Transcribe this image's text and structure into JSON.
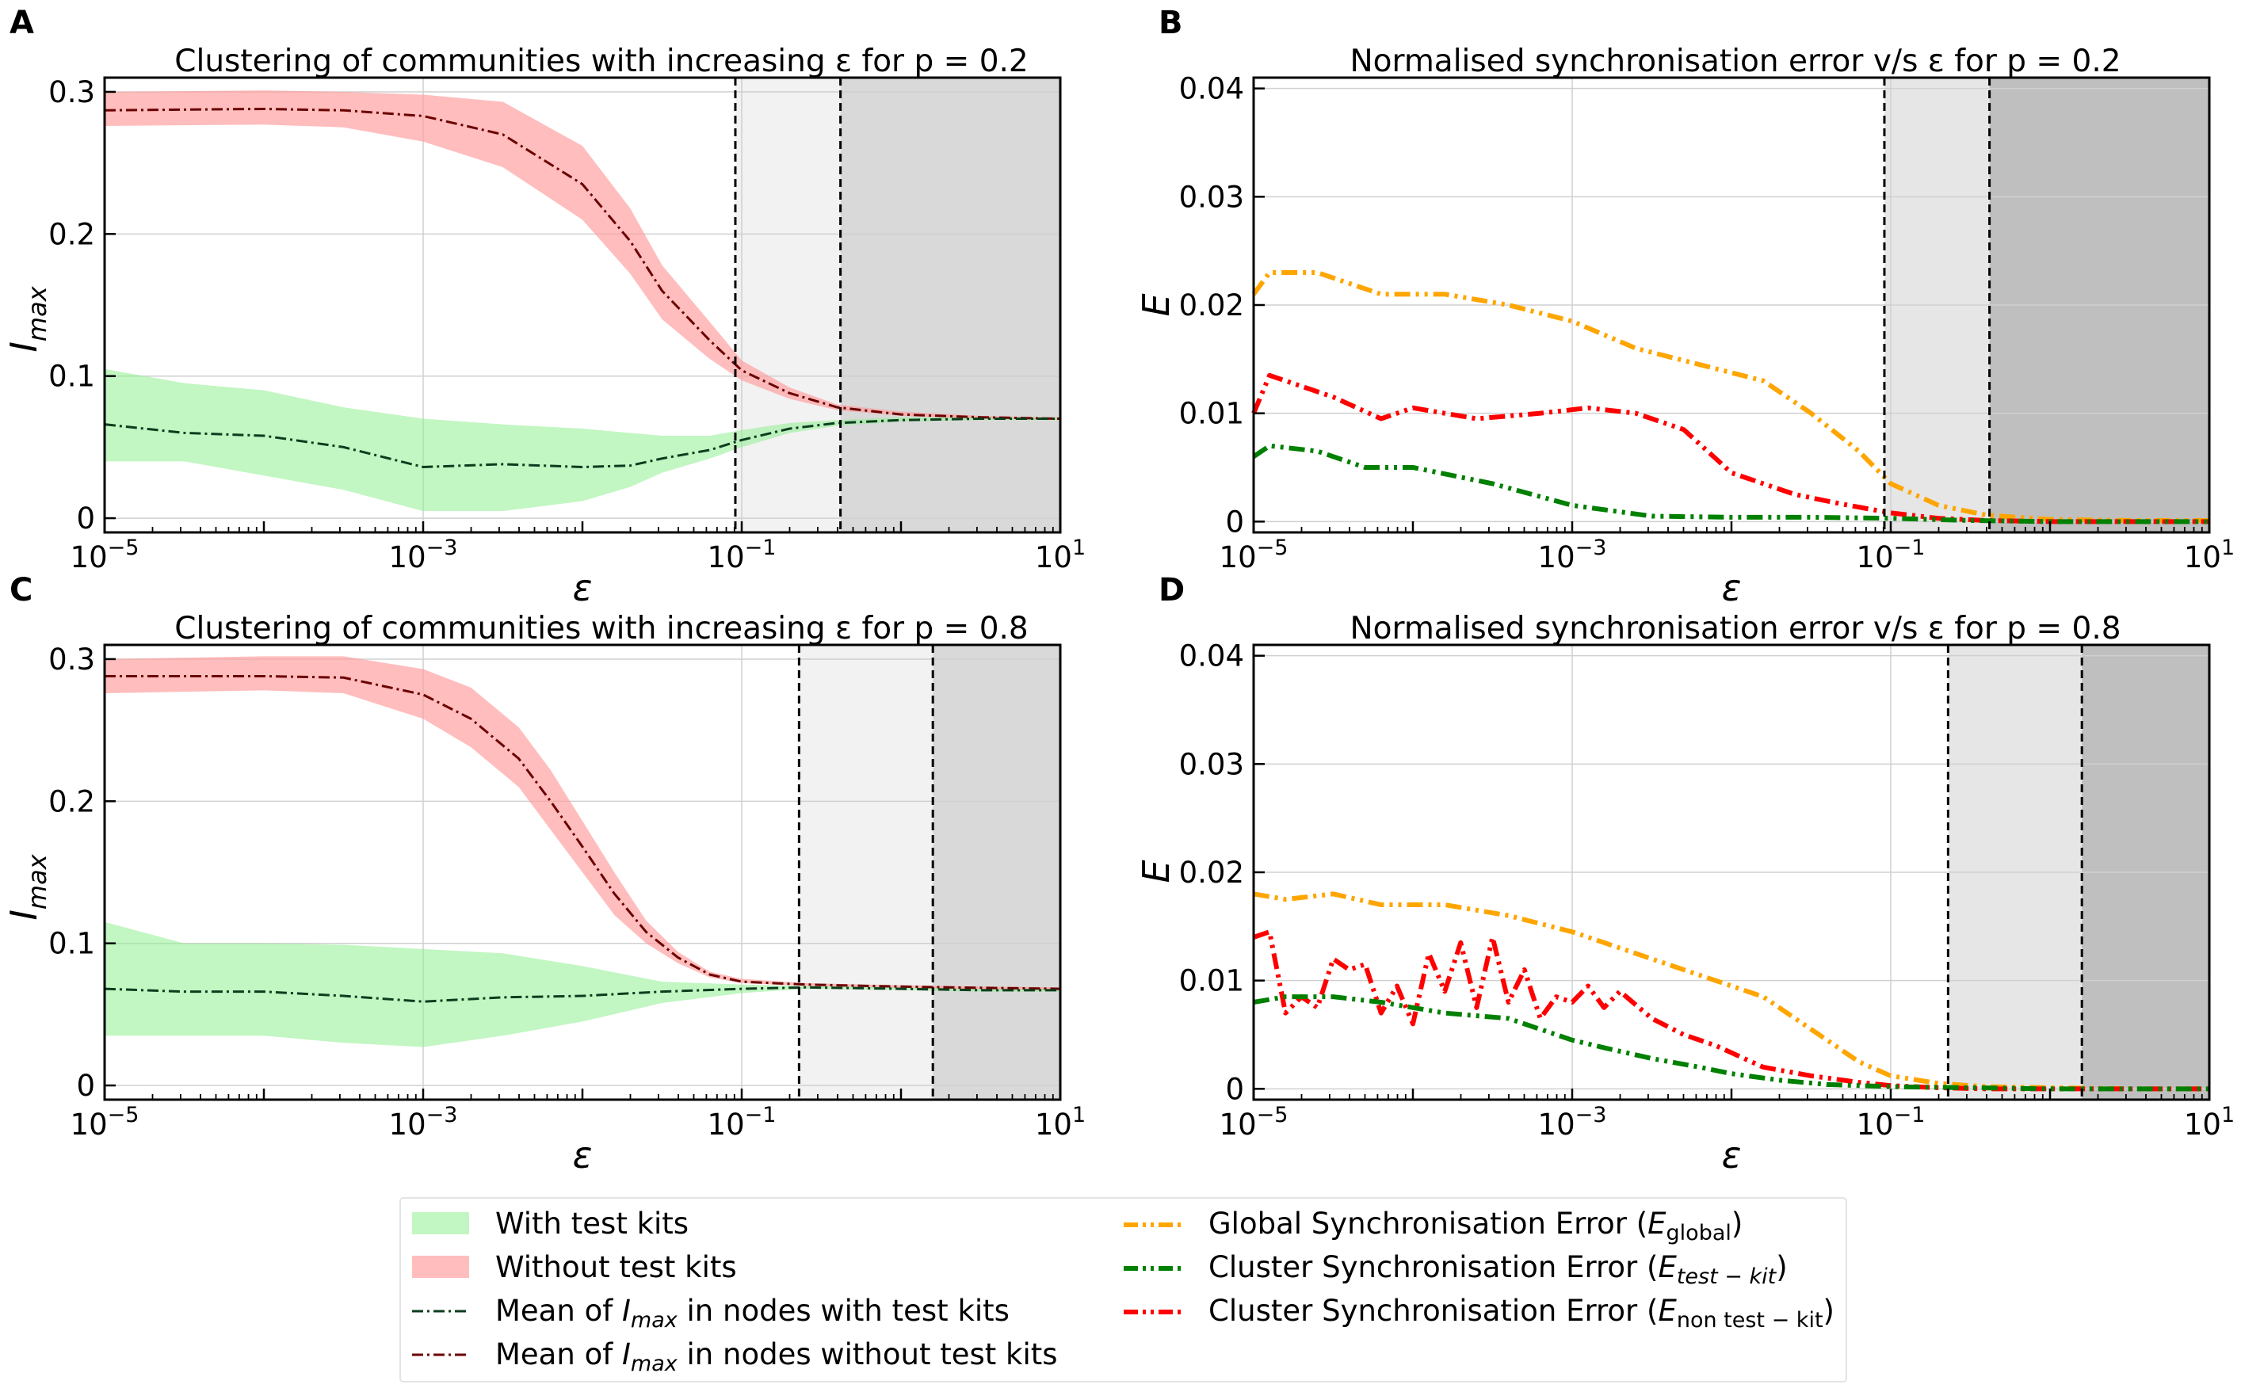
{
  "figure": {
    "panels": {
      "A": {
        "letter": "A",
        "title": "Clustering of communities with increasing ε for p = 0.2",
        "ylabel": "I",
        "ysub": "max",
        "xlabel": "ε"
      },
      "B": {
        "letter": "B",
        "title": "Normalised synchronisation error v/s ε for p = 0.2",
        "ylabel": "E",
        "xlabel": "ε"
      },
      "C": {
        "letter": "C",
        "title": "Clustering of communities with increasing ε for p = 0.8",
        "ylabel": "I",
        "ysub": "max",
        "xlabel": "ε"
      },
      "D": {
        "letter": "D",
        "title": "Normalised synchronisation error v/s ε for p = 0.8",
        "ylabel": "E",
        "xlabel": "ε"
      }
    },
    "xticks": [
      {
        "base": "10",
        "exp": "−5"
      },
      {
        "base": "10",
        "exp": "−3"
      },
      {
        "base": "10",
        "exp": "−1"
      },
      {
        "base": "10",
        "exp": "1"
      }
    ],
    "yticks_imax": [
      "0",
      "0.1",
      "0.2",
      "0.3"
    ],
    "yticks_err": [
      "0",
      "0.01",
      "0.02",
      "0.03",
      "0.04"
    ],
    "legend": {
      "with_kits": "With test kits",
      "without_kits": "Without test kits",
      "mean_with": {
        "pre": "Mean of ",
        "var": "I",
        "sub": "max",
        "post": " in nodes with test kits"
      },
      "mean_without": {
        "pre": "Mean of ",
        "var": "I",
        "sub": "max",
        "post": " in nodes without test kits"
      },
      "global": {
        "pre": "Global Synchronisation Error (",
        "var": "E",
        "sub": "global",
        "post": ")"
      },
      "cluster_kit": {
        "pre": "Cluster Synchronisation Error (",
        "var": "E",
        "sub": "test − kit",
        "post": ")"
      },
      "cluster_nonkit": {
        "pre": "Cluster Synchronisation Error (",
        "var": "E",
        "sub": "non test − kit",
        "post": ")"
      }
    }
  },
  "colors": {
    "green_band": "#90ee90",
    "red_band": "#ff9999",
    "mean_with": "#0b3d1e",
    "mean_without": "#6b0000",
    "global": "#ffa500",
    "cluster_kit": "#008000",
    "cluster_nonkit": "#ff0000",
    "shade_light_A": "#f2f2f2",
    "shade_dark_A": "#d9d9d9",
    "shade_light_B": "#e6e6e6",
    "shade_dark_B": "#bfbfbf"
  },
  "chart_data": [
    {
      "id": "A",
      "type": "line",
      "title": "Clustering of communities with increasing ε for p = 0.2",
      "xscale": "log",
      "xlim": [
        -5,
        1
      ],
      "ylim": [
        -0.01,
        0.31
      ],
      "xlabel": "ε",
      "ylabel": "I_max",
      "vlines": [
        -1.04,
        -0.38
      ],
      "shade": [
        [
          -1.04,
          -0.38
        ],
        [
          -0.38,
          1
        ]
      ],
      "series": [
        {
          "name": "Mean of I_max in nodes without test kits",
          "logx": [
            -5,
            -4,
            -3.5,
            -3,
            -2.5,
            -2,
            -1.7,
            -1.5,
            -1.2,
            -1,
            -0.7,
            -0.4,
            0,
            0.5,
            1
          ],
          "values": [
            0.287,
            0.288,
            0.287,
            0.283,
            0.27,
            0.235,
            0.195,
            0.16,
            0.125,
            0.104,
            0.088,
            0.078,
            0.073,
            0.071,
            0.07
          ],
          "band_lo": [
            0.276,
            0.277,
            0.275,
            0.265,
            0.247,
            0.21,
            0.172,
            0.14,
            0.112,
            0.097,
            0.084,
            0.076,
            0.072,
            0.07,
            0.069
          ],
          "band_hi": [
            0.3,
            0.301,
            0.3,
            0.298,
            0.293,
            0.262,
            0.218,
            0.178,
            0.138,
            0.111,
            0.092,
            0.08,
            0.075,
            0.072,
            0.071
          ]
        },
        {
          "name": "Mean of I_max in nodes with test kits",
          "logx": [
            -5,
            -4.5,
            -4,
            -3.5,
            -3,
            -2.5,
            -2,
            -1.7,
            -1.5,
            -1.2,
            -1,
            -0.7,
            -0.4,
            0,
            0.5,
            1
          ],
          "values": [
            0.066,
            0.06,
            0.058,
            0.05,
            0.036,
            0.038,
            0.036,
            0.037,
            0.042,
            0.048,
            0.055,
            0.063,
            0.067,
            0.069,
            0.07,
            0.07
          ],
          "band_lo": [
            0.04,
            0.04,
            0.03,
            0.02,
            0.005,
            0.005,
            0.012,
            0.022,
            0.032,
            0.042,
            0.05,
            0.06,
            0.065,
            0.068,
            0.069,
            0.069
          ],
          "band_hi": [
            0.105,
            0.095,
            0.09,
            0.078,
            0.07,
            0.066,
            0.063,
            0.06,
            0.058,
            0.058,
            0.062,
            0.067,
            0.069,
            0.071,
            0.071,
            0.071
          ]
        }
      ]
    },
    {
      "id": "B",
      "type": "line",
      "title": "Normalised synchronisation error v/s ε for p = 0.2",
      "xscale": "log",
      "xlim": [
        -5,
        1
      ],
      "ylim": [
        -0.001,
        0.041
      ],
      "xlabel": "ε",
      "ylabel": "E",
      "vlines": [
        -1.04,
        -0.38
      ],
      "shade": [
        [
          -1.04,
          -0.38
        ],
        [
          -0.38,
          1
        ]
      ],
      "series": [
        {
          "name": "Global Synchronisation Error (E_global)",
          "logx": [
            -5,
            -4.9,
            -4.6,
            -4.2,
            -3.8,
            -3.4,
            -3,
            -2.6,
            -2.2,
            -1.8,
            -1.5,
            -1.2,
            -1,
            -0.7,
            -0.4,
            0,
            0.5,
            1
          ],
          "values": [
            0.021,
            0.023,
            0.023,
            0.021,
            0.021,
            0.02,
            0.0185,
            0.016,
            0.0145,
            0.013,
            0.01,
            0.0065,
            0.0035,
            0.0015,
            0.0006,
            0.0002,
            0.0001,
            0.0001
          ]
        },
        {
          "name": "Cluster Synchronisation Error (E_non test-kit)",
          "logx": [
            -5,
            -4.9,
            -4.5,
            -4.2,
            -4,
            -3.6,
            -3.2,
            -2.9,
            -2.6,
            -2.3,
            -2,
            -1.6,
            -1.3,
            -1,
            -0.7,
            -0.4,
            0,
            0.5,
            1
          ],
          "values": [
            0.01,
            0.0135,
            0.0115,
            0.0095,
            0.0105,
            0.0095,
            0.01,
            0.0105,
            0.01,
            0.0085,
            0.0045,
            0.0025,
            0.0016,
            0.0008,
            0.0003,
            0.0001,
            0.0,
            0.0,
            0.0
          ]
        },
        {
          "name": "Cluster Synchronisation Error (E_test-kit)",
          "logx": [
            -5,
            -4.9,
            -4.6,
            -4.3,
            -4,
            -3.5,
            -3,
            -2.5,
            -2,
            -1.5,
            -1,
            -0.5,
            0,
            1
          ],
          "values": [
            0.006,
            0.007,
            0.0065,
            0.005,
            0.005,
            0.0035,
            0.0015,
            0.0005,
            0.0004,
            0.0004,
            0.0003,
            0.0001,
            0.0,
            0.0
          ]
        }
      ]
    },
    {
      "id": "C",
      "type": "line",
      "title": "Clustering of communities with increasing ε for p = 0.8",
      "xscale": "log",
      "xlim": [
        -5,
        1
      ],
      "ylim": [
        -0.01,
        0.31
      ],
      "xlabel": "ε",
      "ylabel": "I_max",
      "vlines": [
        -0.64,
        0.2
      ],
      "shade": [
        [
          -0.64,
          0.2
        ],
        [
          0.2,
          1
        ]
      ],
      "series": [
        {
          "name": "Mean of I_max in nodes without test kits",
          "logx": [
            -5,
            -4,
            -3.5,
            -3,
            -2.7,
            -2.4,
            -2.2,
            -2,
            -1.8,
            -1.6,
            -1.4,
            -1.2,
            -1,
            -0.6,
            -0.2,
            0.3,
            1
          ],
          "values": [
            0.288,
            0.288,
            0.287,
            0.275,
            0.258,
            0.23,
            0.2,
            0.168,
            0.135,
            0.108,
            0.09,
            0.078,
            0.073,
            0.071,
            0.07,
            0.069,
            0.068
          ],
          "band_lo": [
            0.276,
            0.278,
            0.276,
            0.258,
            0.238,
            0.21,
            0.18,
            0.15,
            0.12,
            0.1,
            0.086,
            0.076,
            0.072,
            0.07,
            0.069,
            0.068,
            0.067
          ],
          "band_hi": [
            0.3,
            0.302,
            0.302,
            0.293,
            0.28,
            0.252,
            0.222,
            0.186,
            0.15,
            0.116,
            0.094,
            0.08,
            0.075,
            0.072,
            0.071,
            0.07,
            0.069
          ]
        },
        {
          "name": "Mean of I_max in nodes with test kits",
          "logx": [
            -5,
            -4.5,
            -4,
            -3.5,
            -3,
            -2.5,
            -2,
            -1.5,
            -1,
            -0.6,
            0,
            0.5,
            1
          ],
          "values": [
            0.068,
            0.066,
            0.066,
            0.063,
            0.059,
            0.062,
            0.063,
            0.066,
            0.068,
            0.069,
            0.068,
            0.067,
            0.067
          ],
          "band_lo": [
            0.035,
            0.035,
            0.035,
            0.03,
            0.027,
            0.035,
            0.045,
            0.058,
            0.065,
            0.068,
            0.067,
            0.066,
            0.066
          ],
          "band_hi": [
            0.115,
            0.1,
            0.1,
            0.099,
            0.096,
            0.093,
            0.084,
            0.073,
            0.071,
            0.07,
            0.069,
            0.068,
            0.068
          ]
        }
      ]
    },
    {
      "id": "D",
      "type": "line",
      "title": "Normalised synchronisation error v/s ε for p = 0.8",
      "xscale": "log",
      "xlim": [
        -5,
        1
      ],
      "ylim": [
        -0.001,
        0.041
      ],
      "xlabel": "ε",
      "ylabel": "E",
      "vlines": [
        -0.64,
        0.2
      ],
      "shade": [
        [
          -0.64,
          0.2
        ],
        [
          0.2,
          1
        ]
      ],
      "series": [
        {
          "name": "Global Synchronisation Error (E_global)",
          "logx": [
            -5,
            -4.8,
            -4.5,
            -4.2,
            -3.8,
            -3.4,
            -3,
            -2.6,
            -2.2,
            -1.8,
            -1.5,
            -1.2,
            -1,
            -0.7,
            -0.4,
            0,
            0.5,
            1
          ],
          "values": [
            0.018,
            0.0175,
            0.018,
            0.017,
            0.017,
            0.016,
            0.0145,
            0.0125,
            0.0105,
            0.0085,
            0.0055,
            0.0025,
            0.0012,
            0.0005,
            0.0002,
            0.0001,
            0.0,
            0.0
          ]
        },
        {
          "name": "Cluster Synchronisation Error (E_non test-kit)",
          "logx": [
            -5,
            -4.9,
            -4.8,
            -4.7,
            -4.6,
            -4.5,
            -4.4,
            -4.3,
            -4.2,
            -4.1,
            -4.0,
            -3.9,
            -3.8,
            -3.7,
            -3.6,
            -3.5,
            -3.4,
            -3.3,
            -3.2,
            -3.1,
            -3.0,
            -2.9,
            -2.8,
            -2.7,
            -2.5,
            -2.3,
            -2.1,
            -1.8,
            -1.5,
            -1.2,
            -1,
            -0.7,
            -0.4,
            0,
            0.5,
            1
          ],
          "values": [
            0.014,
            0.0145,
            0.007,
            0.0085,
            0.0075,
            0.012,
            0.011,
            0.0115,
            0.007,
            0.0095,
            0.006,
            0.0125,
            0.009,
            0.0135,
            0.0075,
            0.014,
            0.008,
            0.011,
            0.0065,
            0.0085,
            0.008,
            0.0095,
            0.0075,
            0.009,
            0.0065,
            0.005,
            0.004,
            0.002,
            0.0012,
            0.0006,
            0.0003,
            0.0001,
            0.0,
            0.0,
            0.0,
            0.0
          ]
        },
        {
          "name": "Cluster Synchronisation Error (E_test-kit)",
          "logx": [
            -5,
            -4.8,
            -4.5,
            -4.2,
            -3.8,
            -3.4,
            -3,
            -2.8,
            -2.5,
            -2.2,
            -2,
            -1.7,
            -1.4,
            -1,
            -0.5,
            0,
            1
          ],
          "values": [
            0.008,
            0.0085,
            0.0085,
            0.008,
            0.007,
            0.0065,
            0.0045,
            0.0038,
            0.0028,
            0.002,
            0.0014,
            0.0008,
            0.0004,
            0.0002,
            0.0001,
            0.0,
            0.0
          ]
        }
      ]
    }
  ]
}
